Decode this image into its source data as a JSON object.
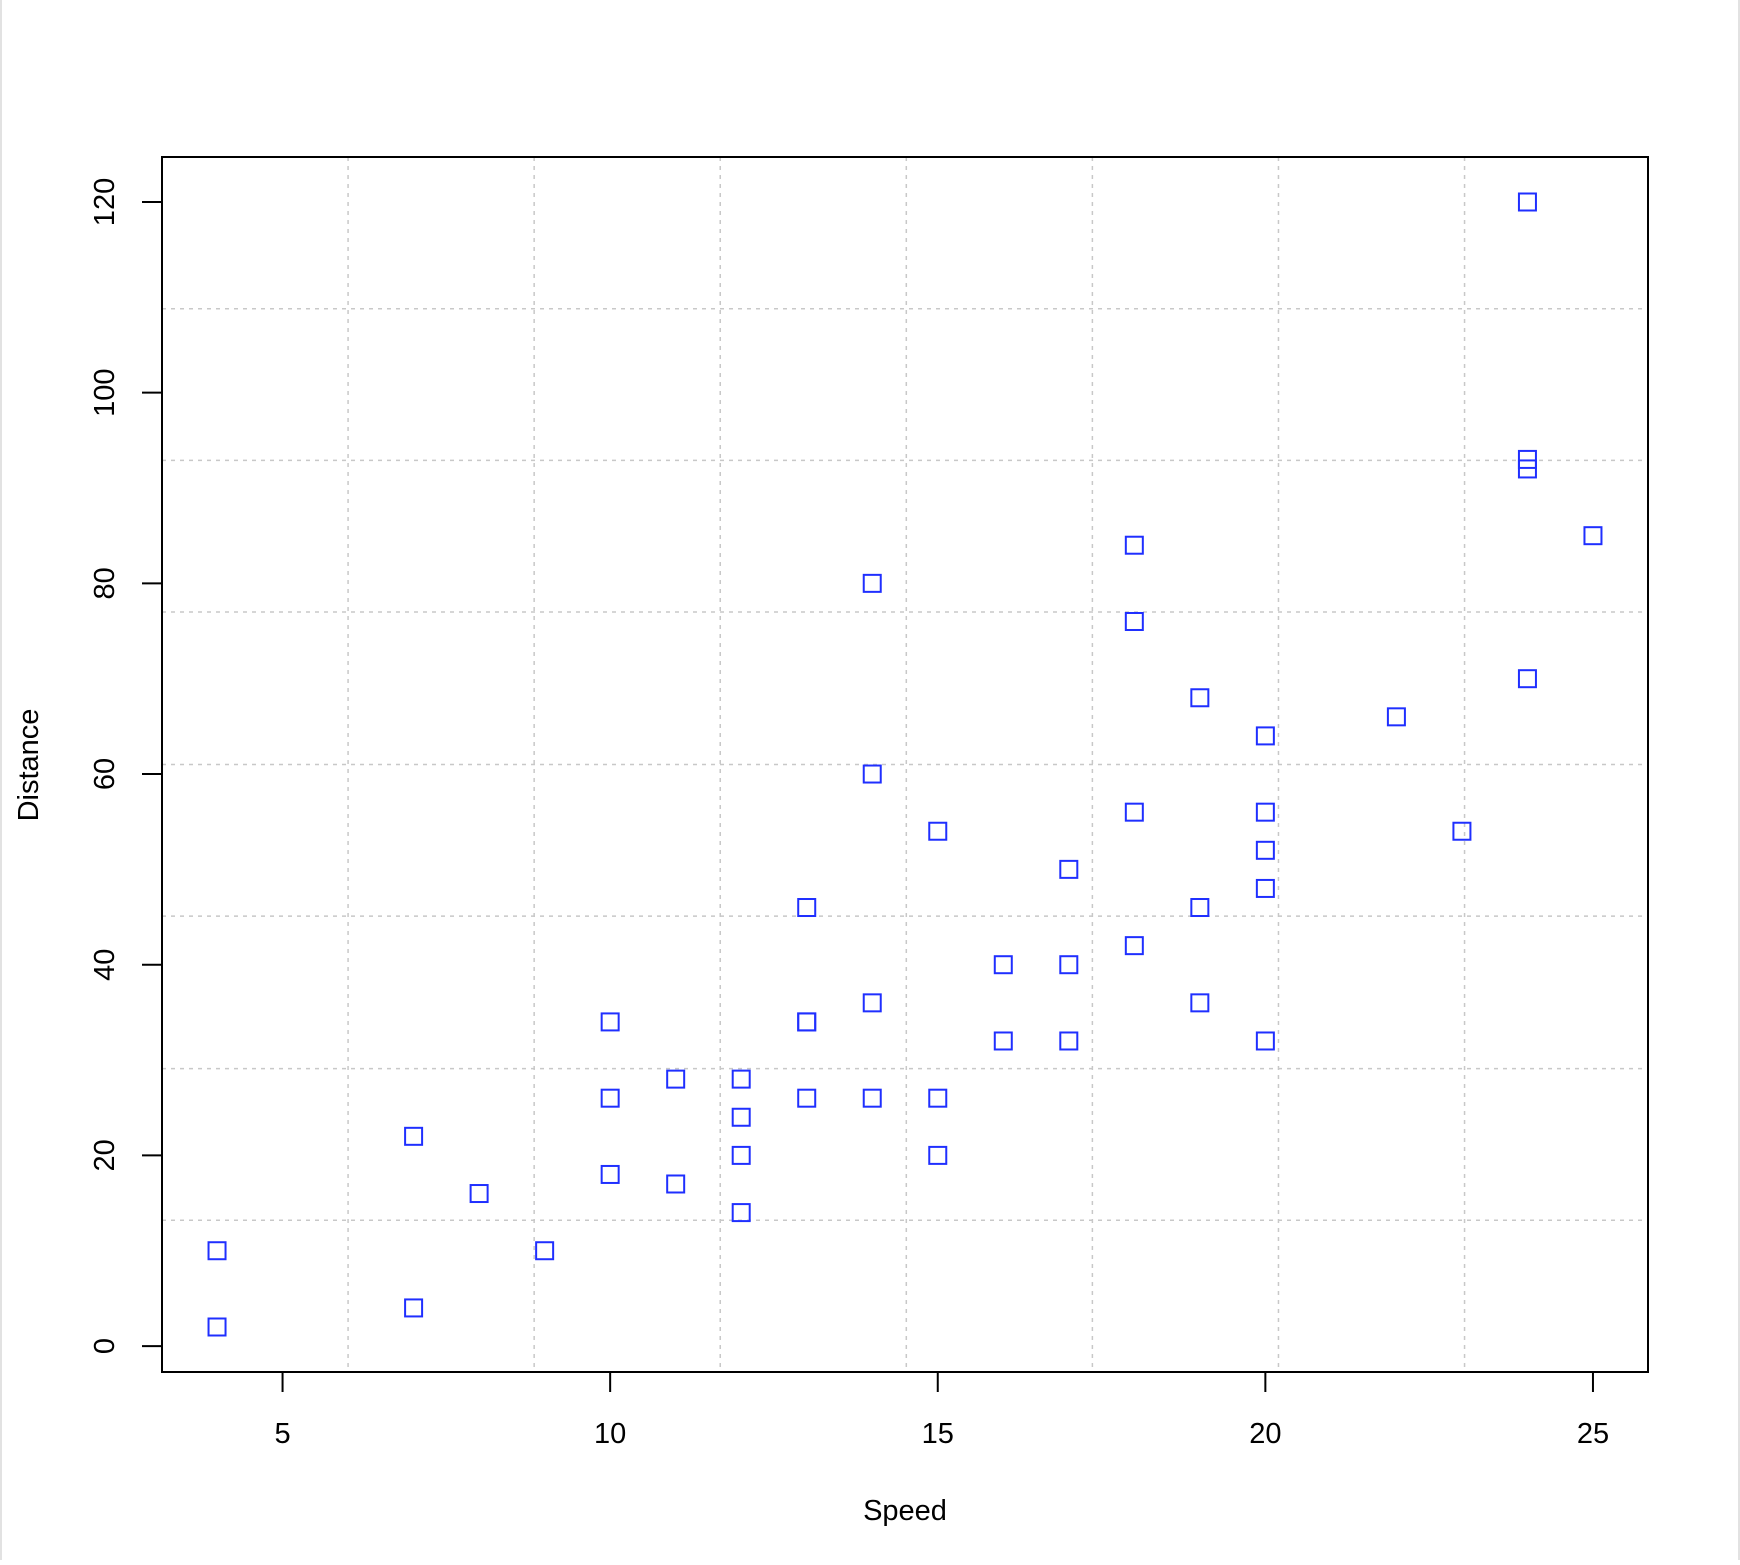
{
  "chart_data": {
    "type": "scatter",
    "xlabel": "Speed",
    "ylabel": "Distance",
    "xlim": [
      3.16,
      25.84
    ],
    "ylim": [
      -2.72,
      124.72
    ],
    "x_ticks": [
      5,
      10,
      15,
      20,
      25
    ],
    "y_ticks": [
      0,
      20,
      40,
      60,
      80,
      100,
      120
    ],
    "grid": true,
    "grid_x": [
      6,
      8.84,
      11.68,
      14.52,
      17.36,
      20.2,
      23.04
    ],
    "grid_y": [
      13.2,
      29.1,
      45.1,
      61.0,
      77.0,
      92.9,
      108.8
    ],
    "marker": "square-open",
    "marker_color": "#1f2fff",
    "grid_color": "#c8c8c8",
    "points": [
      {
        "x": 4,
        "y": 2
      },
      {
        "x": 4,
        "y": 10
      },
      {
        "x": 7,
        "y": 4
      },
      {
        "x": 7,
        "y": 22
      },
      {
        "x": 8,
        "y": 16
      },
      {
        "x": 9,
        "y": 10
      },
      {
        "x": 10,
        "y": 18
      },
      {
        "x": 10,
        "y": 26
      },
      {
        "x": 10,
        "y": 34
      },
      {
        "x": 11,
        "y": 17
      },
      {
        "x": 11,
        "y": 28
      },
      {
        "x": 12,
        "y": 14
      },
      {
        "x": 12,
        "y": 20
      },
      {
        "x": 12,
        "y": 24
      },
      {
        "x": 12,
        "y": 28
      },
      {
        "x": 13,
        "y": 26
      },
      {
        "x": 13,
        "y": 34
      },
      {
        "x": 13,
        "y": 34
      },
      {
        "x": 13,
        "y": 46
      },
      {
        "x": 14,
        "y": 26
      },
      {
        "x": 14,
        "y": 36
      },
      {
        "x": 14,
        "y": 60
      },
      {
        "x": 14,
        "y": 80
      },
      {
        "x": 15,
        "y": 20
      },
      {
        "x": 15,
        "y": 26
      },
      {
        "x": 15,
        "y": 54
      },
      {
        "x": 16,
        "y": 32
      },
      {
        "x": 16,
        "y": 40
      },
      {
        "x": 17,
        "y": 32
      },
      {
        "x": 17,
        "y": 40
      },
      {
        "x": 17,
        "y": 50
      },
      {
        "x": 18,
        "y": 42
      },
      {
        "x": 18,
        "y": 56
      },
      {
        "x": 18,
        "y": 76
      },
      {
        "x": 18,
        "y": 84
      },
      {
        "x": 19,
        "y": 36
      },
      {
        "x": 19,
        "y": 46
      },
      {
        "x": 19,
        "y": 68
      },
      {
        "x": 20,
        "y": 32
      },
      {
        "x": 20,
        "y": 48
      },
      {
        "x": 20,
        "y": 52
      },
      {
        "x": 20,
        "y": 56
      },
      {
        "x": 20,
        "y": 64
      },
      {
        "x": 22,
        "y": 66
      },
      {
        "x": 23,
        "y": 54
      },
      {
        "x": 24,
        "y": 70
      },
      {
        "x": 24,
        "y": 92
      },
      {
        "x": 24,
        "y": 93
      },
      {
        "x": 24,
        "y": 120
      },
      {
        "x": 25,
        "y": 85
      }
    ]
  }
}
